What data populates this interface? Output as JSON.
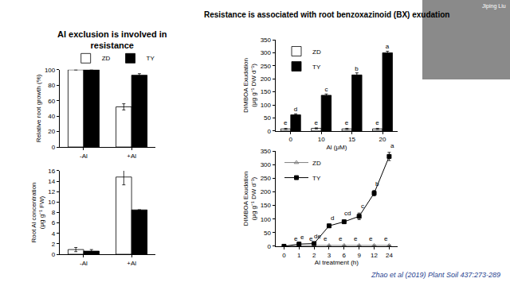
{
  "left_title": [
    "Al exclusion is involved in",
    "resistance"
  ],
  "right_title": [
    "Resistance is associated with root benzoxazinoid (BX) exudation"
  ],
  "citation": "Zhao et al (2019) Plant Soil 437:273-289",
  "speaker": "Jiping Liu",
  "chart_data": [
    {
      "type": "bar",
      "y_label": [
        "Relative root growth (%)"
      ],
      "categories": [
        "-Al",
        "+Al"
      ],
      "series": [
        {
          "name": "ZD",
          "color": "#ffffff",
          "values": [
            100,
            52
          ],
          "errors": [
            0,
            4
          ]
        },
        {
          "name": "TY",
          "color": "#000000",
          "values": [
            100,
            93
          ],
          "errors": [
            0,
            2
          ]
        }
      ],
      "ylim": [
        0,
        100
      ],
      "yticks": [
        0,
        20,
        40,
        60,
        80,
        100
      ],
      "legend": "top"
    },
    {
      "type": "bar",
      "y_label": [
        "Root Al concentration",
        "(μg g⁻¹ FW)"
      ],
      "categories": [
        "-Al",
        "+Al"
      ],
      "series": [
        {
          "name": "ZD",
          "color": "#ffffff",
          "values": [
            0.9,
            14.8
          ],
          "errors": [
            0.4,
            1.5
          ]
        },
        {
          "name": "TY",
          "color": "#000000",
          "values": [
            0.6,
            8.5
          ],
          "errors": [
            0.3,
            0
          ]
        }
      ],
      "ylim": [
        0,
        16
      ],
      "yticks": [
        0,
        2,
        4,
        6,
        8,
        10,
        12,
        14,
        16
      ]
    },
    {
      "type": "bar",
      "y_label": [
        "DIMBOA Exudation",
        "(μg g⁻¹ DW d⁻¹)"
      ],
      "x_label": "Al (μM)",
      "categories": [
        "0",
        "10",
        "15",
        "20"
      ],
      "series": [
        {
          "name": "ZD",
          "color": "#ffffff",
          "values": [
            8,
            10,
            8,
            8
          ],
          "errors": [
            2,
            2,
            2,
            2
          ],
          "letters": [
            "e",
            "e",
            "e",
            "e"
          ]
        },
        {
          "name": "TY",
          "color": "#000000",
          "values": [
            62,
            137,
            215,
            300
          ],
          "errors": [
            4,
            5,
            8,
            6
          ],
          "letters": [
            "d",
            "c",
            "b",
            "a"
          ]
        }
      ],
      "ylim": [
        0,
        350
      ],
      "yticks": [
        0,
        50,
        100,
        150,
        200,
        250,
        300,
        350
      ],
      "legend": "top-left"
    },
    {
      "type": "line",
      "y_label": [
        "DIMBOA Exudation",
        "(μg g⁻¹ DW d⁻¹)"
      ],
      "x_label": "Al treatment (h)",
      "categories": [
        "0",
        "1",
        "2",
        "3",
        "6",
        "9",
        "12",
        "24"
      ],
      "series": [
        {
          "name": "ZD",
          "color": "#7f7f7f",
          "marker": "triangle-up-open",
          "values": [
            0,
            2,
            3,
            3,
            3,
            3,
            3,
            3
          ],
          "errors": [
            0,
            1,
            1,
            1,
            1,
            1,
            1,
            1
          ],
          "letters": [
            null,
            "e",
            "e",
            "e",
            "e",
            "e",
            "e",
            "e"
          ]
        },
        {
          "name": "TY",
          "color": "#000000",
          "marker": "square",
          "values": [
            0,
            8,
            10,
            75,
            90,
            110,
            195,
            330
          ],
          "errors": [
            0,
            2,
            3,
            5,
            5,
            12,
            10,
            15
          ],
          "letters": [
            null,
            "e",
            "de",
            "d",
            "cd",
            "c",
            "b",
            "a"
          ]
        }
      ],
      "ylim": [
        0,
        350
      ],
      "yticks": [
        0,
        50,
        100,
        150,
        200,
        250,
        300,
        350
      ],
      "legend": "top-left"
    }
  ]
}
